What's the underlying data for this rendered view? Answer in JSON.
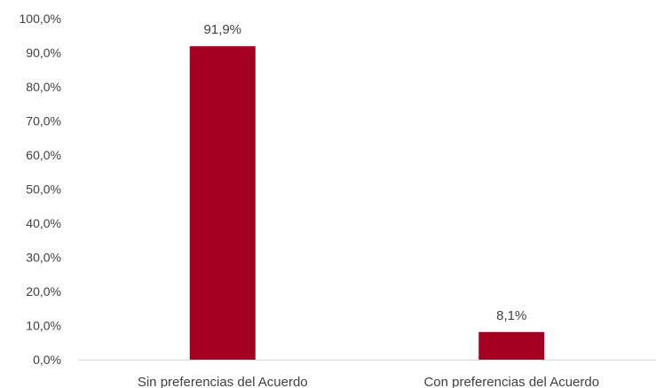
{
  "chart_data": {
    "type": "bar",
    "categories": [
      "Sin preferencias del Acuerdo",
      "Con preferencias del Acuerdo"
    ],
    "values": [
      91.9,
      8.1
    ],
    "data_labels": [
      "91,9%",
      "8,1%"
    ],
    "yticks": [
      "0,0%",
      "10,0%",
      "20,0%",
      "30,0%",
      "40,0%",
      "50,0%",
      "60,0%",
      "70,0%",
      "80,0%",
      "90,0%",
      "100,0%"
    ],
    "ylim": [
      0,
      100
    ],
    "bar_color": "#A50021",
    "axis_color": "#D9D9D9",
    "grid": false,
    "legend": "none"
  }
}
